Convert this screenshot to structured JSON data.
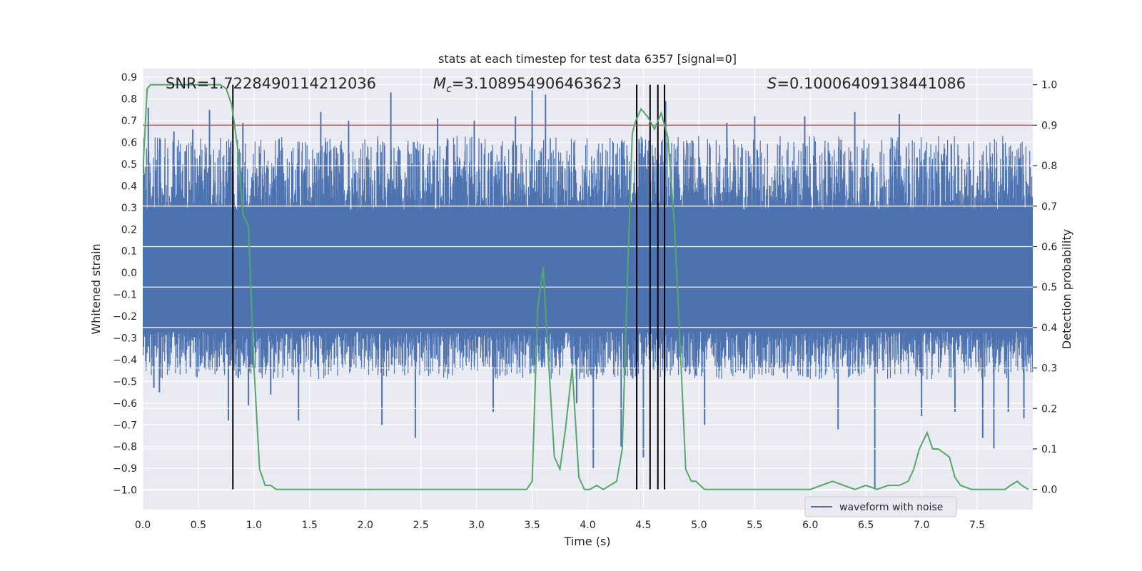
{
  "chart_data": {
    "type": "line",
    "title": "stats at each timestep for test data 6357 [signal=0]",
    "xlabel": "Time (s)",
    "ylabel": "Whitened strain",
    "ylabel_right": "Detection probability",
    "xlim": [
      0.0,
      8.0
    ],
    "ylim": [
      -1.09,
      0.94
    ],
    "ylim_right": [
      -0.05,
      1.04
    ],
    "x_ticks": [
      "0.0",
      "0.5",
      "1.0",
      "1.5",
      "2.0",
      "2.5",
      "3.0",
      "3.5",
      "4.0",
      "4.5",
      "5.0",
      "5.5",
      "6.0",
      "6.5",
      "7.0",
      "7.5"
    ],
    "y_ticks": [
      "0.9",
      "0.8",
      "0.7",
      "0.6",
      "0.5",
      "0.4",
      "0.3",
      "0.2",
      "0.1",
      "0.0",
      "-0.1",
      "-0.2",
      "-0.3",
      "-0.4",
      "-0.5",
      "-0.6",
      "-0.7",
      "-0.8",
      "-0.9",
      "-1.0"
    ],
    "y_ticks_right": [
      "1.0",
      "0.9",
      "0.8",
      "0.7",
      "0.6",
      "0.5",
      "0.4",
      "0.3",
      "0.2",
      "0.1",
      "0.0"
    ],
    "grid": true,
    "legend_position": "lower-right",
    "annotations": {
      "snr": "SNR=1.7228490114212036",
      "mc_symbol": "M",
      "mc_sub": "c",
      "mc_value": "=3.108954906463623",
      "s_symbol": "S",
      "s_value": "=0.10006409138441086"
    },
    "threshold_right": 0.9,
    "vlines_x": [
      0.81,
      4.44,
      4.56,
      4.63,
      4.69
    ],
    "series": [
      {
        "name": "waveform with noise",
        "axis": "left",
        "color": "#4c72b0",
        "style": "dense noise band, whitened strain",
        "core_band": [
          -0.27,
          0.29
        ],
        "spikes": [
          {
            "x": 0.05,
            "y": 0.76
          },
          {
            "x": 0.1,
            "y": -0.53
          },
          {
            "x": 0.15,
            "y": -0.55
          },
          {
            "x": 0.28,
            "y": 0.65
          },
          {
            "x": 0.45,
            "y": 0.66
          },
          {
            "x": 0.6,
            "y": 0.75
          },
          {
            "x": 0.77,
            "y": -0.68
          },
          {
            "x": 0.9,
            "y": 0.69
          },
          {
            "x": 0.95,
            "y": -0.61
          },
          {
            "x": 1.15,
            "y": -0.56
          },
          {
            "x": 1.4,
            "y": -0.68
          },
          {
            "x": 1.6,
            "y": 0.74
          },
          {
            "x": 1.85,
            "y": 0.7
          },
          {
            "x": 2.15,
            "y": -0.7
          },
          {
            "x": 2.23,
            "y": 0.83
          },
          {
            "x": 2.45,
            "y": -0.76
          },
          {
            "x": 2.65,
            "y": 0.71
          },
          {
            "x": 2.98,
            "y": 0.7
          },
          {
            "x": 3.15,
            "y": -0.64
          },
          {
            "x": 3.35,
            "y": 0.72
          },
          {
            "x": 3.5,
            "y": 0.84
          },
          {
            "x": 3.62,
            "y": 0.82
          },
          {
            "x": 3.9,
            "y": -0.6
          },
          {
            "x": 4.05,
            "y": -0.9
          },
          {
            "x": 4.3,
            "y": -0.8
          },
          {
            "x": 4.5,
            "y": -0.85
          },
          {
            "x": 4.7,
            "y": 0.79
          },
          {
            "x": 5.05,
            "y": -0.7
          },
          {
            "x": 5.25,
            "y": 0.69
          },
          {
            "x": 5.5,
            "y": 0.72
          },
          {
            "x": 5.95,
            "y": 0.72
          },
          {
            "x": 6.25,
            "y": -0.72
          },
          {
            "x": 6.4,
            "y": 0.74
          },
          {
            "x": 6.58,
            "y": -1.0
          },
          {
            "x": 6.8,
            "y": 0.73
          },
          {
            "x": 7.0,
            "y": -0.66
          },
          {
            "x": 7.3,
            "y": -0.64
          },
          {
            "x": 7.55,
            "y": -0.76
          },
          {
            "x": 7.65,
            "y": -0.81
          },
          {
            "x": 7.78,
            "y": -0.64
          },
          {
            "x": 7.92,
            "y": -0.67
          }
        ]
      },
      {
        "name": "",
        "axis": "right",
        "color": "#55a868",
        "x": [
          0.0,
          0.04,
          0.07,
          0.12,
          0.2,
          0.3,
          0.4,
          0.5,
          0.6,
          0.7,
          0.75,
          0.8,
          0.85,
          0.9,
          0.95,
          1.0,
          1.05,
          1.1,
          1.15,
          1.2,
          1.3,
          1.4,
          1.5,
          1.6,
          1.7,
          1.8,
          1.9,
          2.0,
          2.2,
          2.4,
          2.6,
          2.8,
          3.0,
          3.2,
          3.3,
          3.4,
          3.45,
          3.5,
          3.55,
          3.6,
          3.64,
          3.7,
          3.75,
          3.8,
          3.86,
          3.92,
          3.97,
          4.02,
          4.08,
          4.14,
          4.2,
          4.26,
          4.31,
          4.36,
          4.4,
          4.43,
          4.48,
          4.54,
          4.6,
          4.66,
          4.72,
          4.78,
          4.84,
          4.88,
          4.93,
          4.97,
          5.05,
          5.2,
          5.4,
          5.6,
          5.8,
          6.0,
          6.1,
          6.2,
          6.3,
          6.4,
          6.5,
          6.6,
          6.7,
          6.8,
          6.88,
          6.93,
          6.98,
          7.05,
          7.1,
          7.15,
          7.2,
          7.25,
          7.3,
          7.35,
          7.45,
          7.6,
          7.75,
          7.8,
          7.86,
          7.9,
          7.96
        ],
        "values": [
          0.78,
          0.99,
          1.0,
          1.0,
          1.0,
          1.0,
          1.0,
          1.0,
          1.0,
          1.0,
          0.99,
          0.95,
          0.85,
          0.68,
          0.65,
          0.3,
          0.05,
          0.01,
          0.01,
          0.0,
          0.0,
          0.0,
          0.0,
          0.0,
          0.0,
          0.0,
          0.0,
          0.0,
          0.0,
          0.0,
          0.0,
          0.0,
          0.0,
          0.0,
          0.0,
          0.0,
          0.0,
          0.02,
          0.45,
          0.55,
          0.35,
          0.08,
          0.05,
          0.15,
          0.3,
          0.03,
          0.0,
          0.0,
          0.01,
          0.0,
          0.01,
          0.02,
          0.1,
          0.55,
          0.88,
          0.91,
          0.94,
          0.92,
          0.89,
          0.93,
          0.87,
          0.65,
          0.3,
          0.05,
          0.02,
          0.02,
          0.0,
          0.0,
          0.0,
          0.0,
          0.0,
          0.0,
          0.01,
          0.02,
          0.01,
          0.0,
          0.01,
          0.0,
          0.01,
          0.01,
          0.02,
          0.05,
          0.1,
          0.14,
          0.1,
          0.1,
          0.09,
          0.08,
          0.03,
          0.01,
          0.0,
          0.0,
          0.0,
          0.01,
          0.02,
          0.01,
          0.0
        ]
      }
    ]
  },
  "colors": {
    "axes_bg": "#eaeaf2",
    "grid": "#ffffff",
    "strain": "#4c72b0",
    "probability": "#55a868",
    "threshold": "#c44e52",
    "vline": "#000000"
  }
}
